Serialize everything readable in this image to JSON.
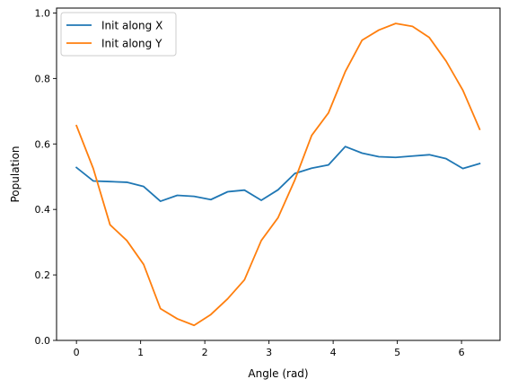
{
  "chart_data": {
    "type": "line",
    "title": "",
    "xlabel": "Angle (rad)",
    "ylabel": "Population",
    "xlim": [
      -0.31,
      6.6
    ],
    "ylim": [
      0.0,
      1.015
    ],
    "xticks": [
      0,
      1,
      2,
      3,
      4,
      5,
      6
    ],
    "yticks": [
      0.0,
      0.2,
      0.4,
      0.6,
      0.8,
      1.0
    ],
    "xtick_labels": [
      "0",
      "1",
      "2",
      "3",
      "4",
      "5",
      "6"
    ],
    "ytick_labels": [
      "0.0",
      "0.2",
      "0.4",
      "0.6",
      "0.8",
      "1.0"
    ],
    "grid": false,
    "legend_position": "top-left",
    "x": [
      0.0,
      0.262,
      0.524,
      0.785,
      1.047,
      1.309,
      1.571,
      1.833,
      2.094,
      2.356,
      2.618,
      2.88,
      3.142,
      3.403,
      3.665,
      3.927,
      4.189,
      4.451,
      4.712,
      4.974,
      5.236,
      5.498,
      5.76,
      6.021,
      6.283
    ],
    "series": [
      {
        "name": "Init along X",
        "color": "#1f77b4",
        "values": [
          0.528,
          0.487,
          0.485,
          0.483,
          0.47,
          0.425,
          0.443,
          0.44,
          0.43,
          0.454,
          0.459,
          0.428,
          0.46,
          0.51,
          0.526,
          0.536,
          0.592,
          0.572,
          0.561,
          0.559,
          0.563,
          0.567,
          0.555,
          0.525,
          0.54
        ]
      },
      {
        "name": "Init along Y",
        "color": "#ff7f0e",
        "values": [
          0.656,
          0.525,
          0.353,
          0.305,
          0.232,
          0.097,
          0.066,
          0.046,
          0.079,
          0.127,
          0.185,
          0.305,
          0.375,
          0.49,
          0.626,
          0.695,
          0.821,
          0.917,
          0.948,
          0.968,
          0.959,
          0.925,
          0.853,
          0.764,
          0.645
        ]
      }
    ]
  }
}
